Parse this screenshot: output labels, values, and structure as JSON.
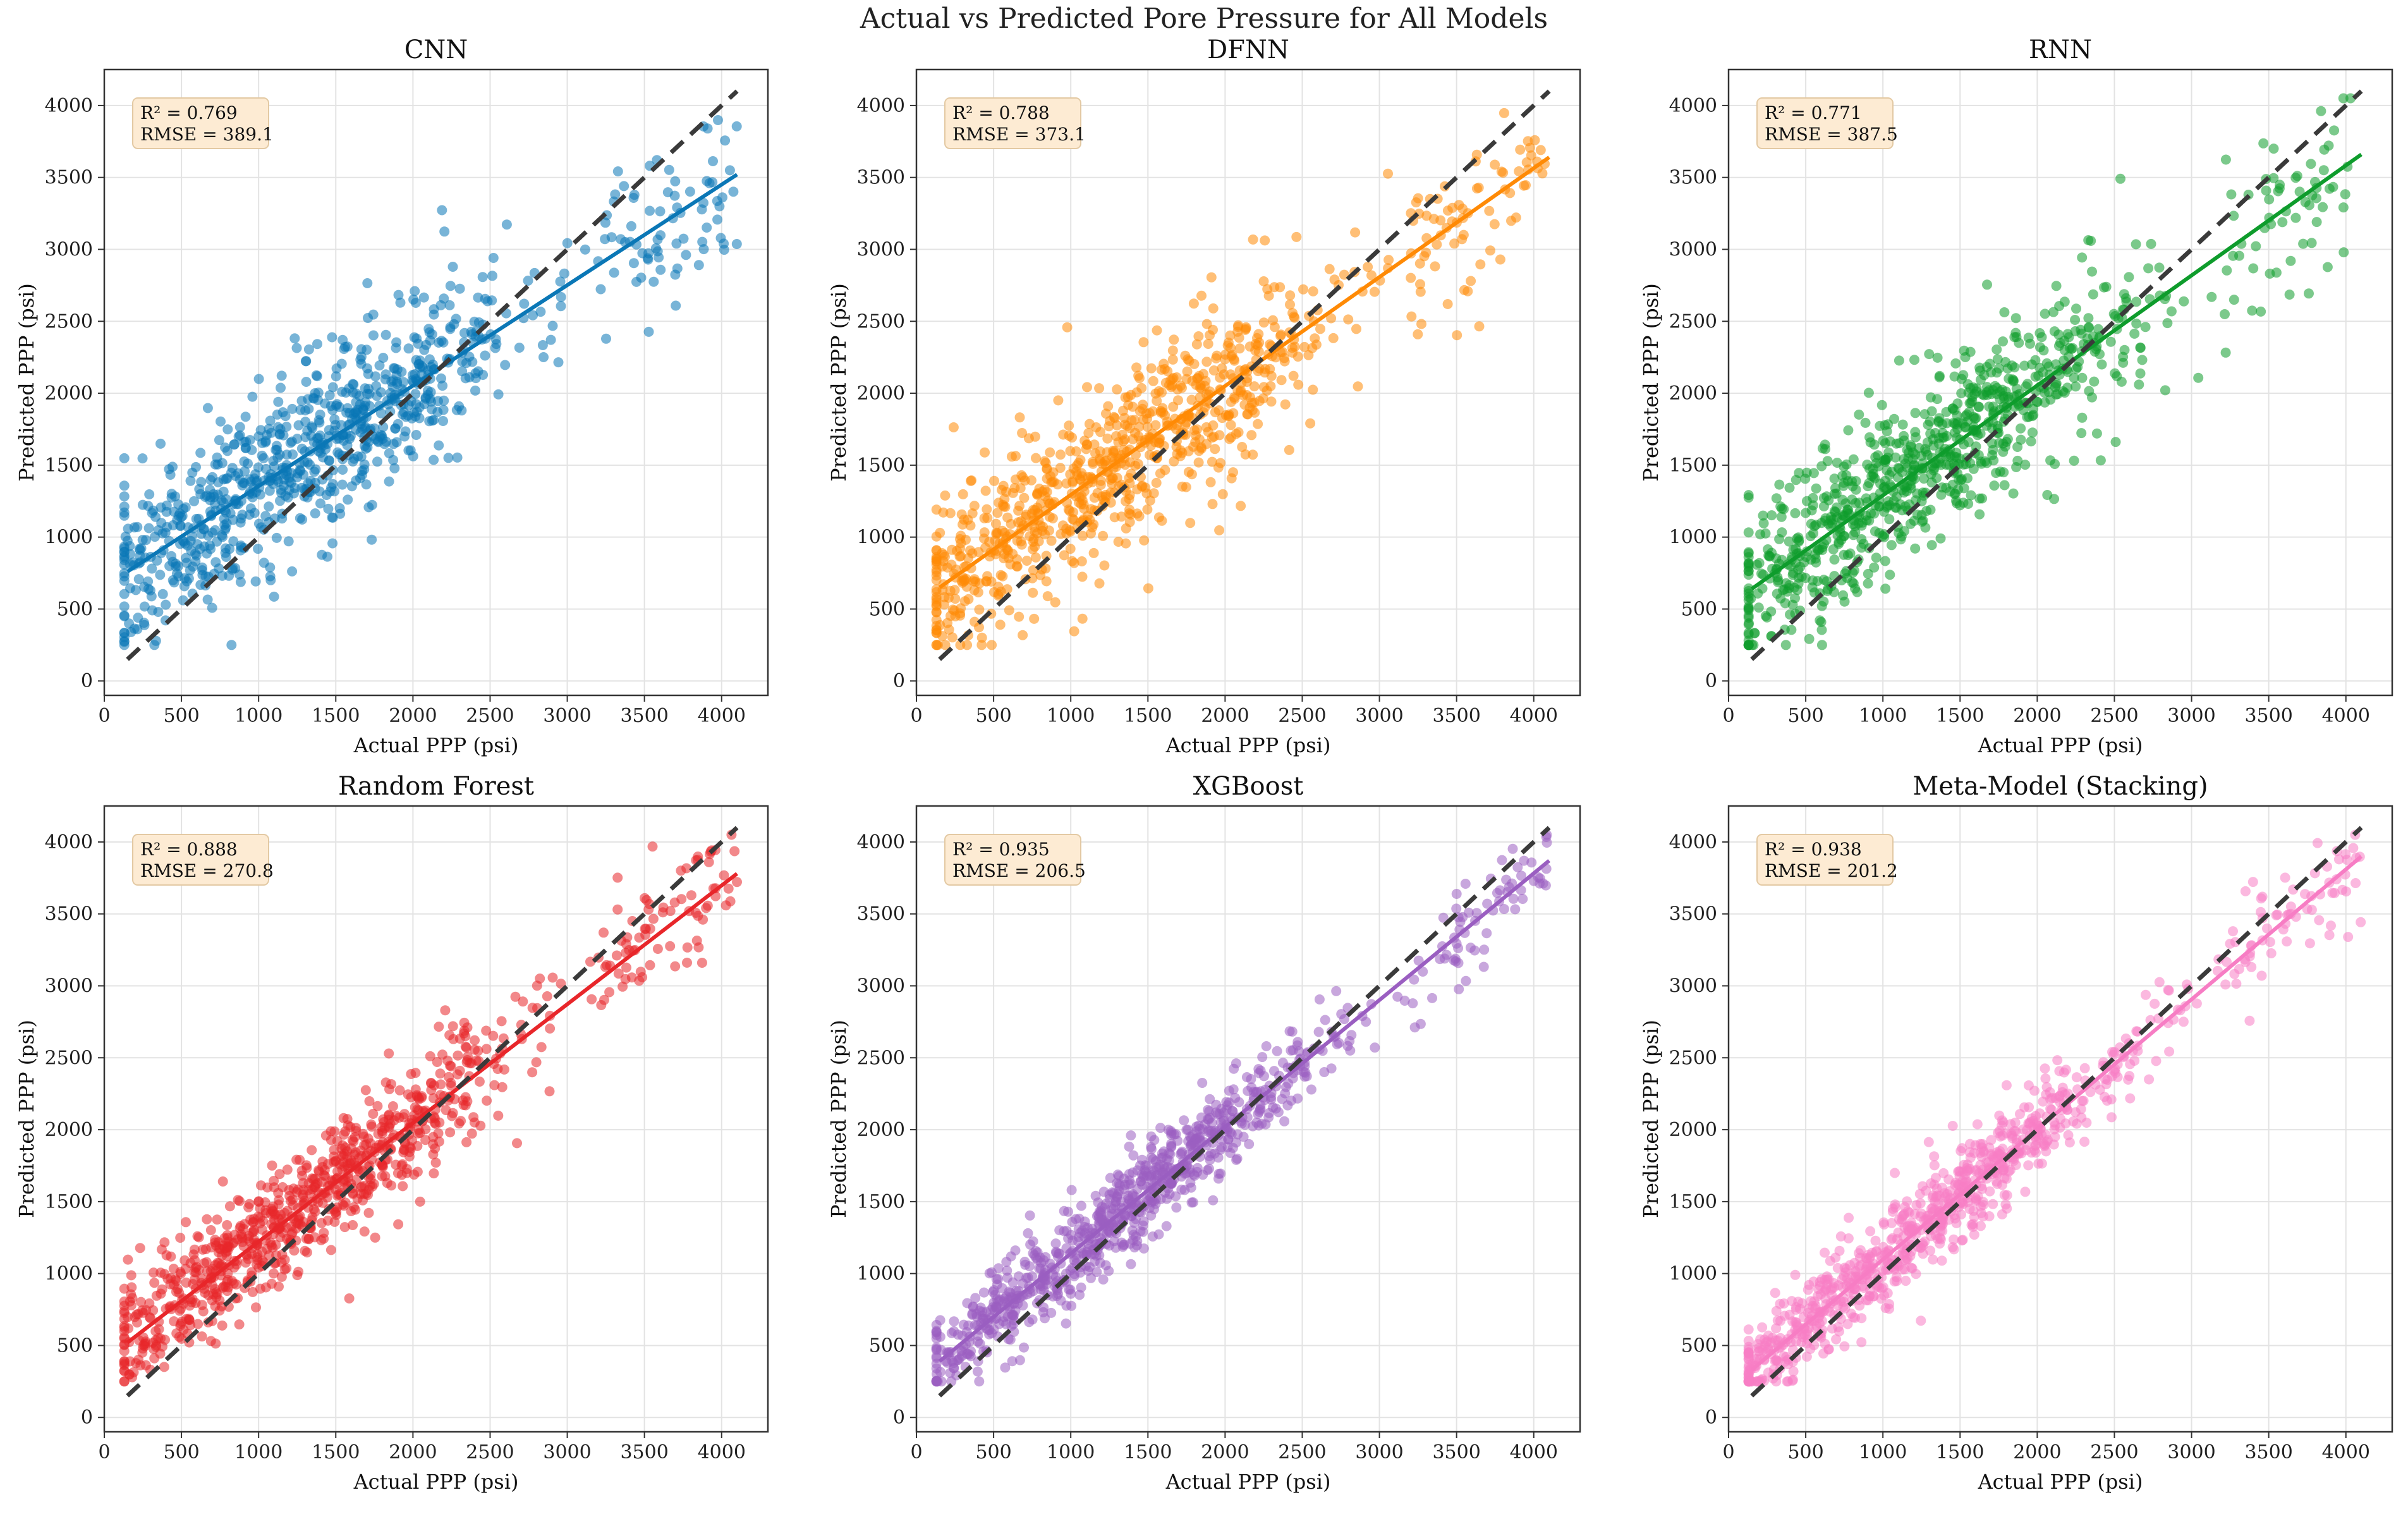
{
  "figure": {
    "title": "Actual vs Predicted Pore Pressure for All Models"
  },
  "chart_data": [
    {
      "type": "scatter",
      "title": "CNN",
      "xlabel": "Actual PPP (psi)",
      "ylabel": "Predicted PPP (psi)",
      "xlim": [
        0,
        4300
      ],
      "ylim": [
        -100,
        4250
      ],
      "xticks": [
        0,
        500,
        1000,
        1500,
        2000,
        2500,
        3000,
        3500,
        4000
      ],
      "yticks": [
        0,
        500,
        1000,
        1500,
        2000,
        2500,
        3000,
        3500,
        4000
      ],
      "color": "#0a77b6",
      "stats": {
        "r2": "R² = 0.769",
        "rmse": "RMSE = 389.1"
      },
      "fit_line": {
        "x": [
          150,
          4100
        ],
        "y": [
          760,
          3520
        ]
      },
      "identity_line": {
        "x": [
          150,
          4100
        ],
        "y": [
          150,
          4100
        ]
      },
      "spread": 390,
      "seed": 11
    },
    {
      "type": "scatter",
      "title": "DFNN",
      "xlabel": "Actual PPP (psi)",
      "ylabel": "Predicted PPP (psi)",
      "xlim": [
        0,
        4300
      ],
      "ylim": [
        -100,
        4250
      ],
      "xticks": [
        0,
        500,
        1000,
        1500,
        2000,
        2500,
        3000,
        3500,
        4000
      ],
      "yticks": [
        0,
        500,
        1000,
        1500,
        2000,
        2500,
        3000,
        3500,
        4000
      ],
      "color": "#ff8a05",
      "stats": {
        "r2": "R² = 0.788",
        "rmse": "RMSE = 373.1"
      },
      "fit_line": {
        "x": [
          150,
          4100
        ],
        "y": [
          650,
          3640
        ]
      },
      "identity_line": {
        "x": [
          150,
          4100
        ],
        "y": [
          150,
          4100
        ]
      },
      "spread": 370,
      "seed": 23
    },
    {
      "type": "scatter",
      "title": "RNN",
      "xlabel": "Actual PPP (psi)",
      "ylabel": "Predicted PPP (psi)",
      "xlim": [
        0,
        4300
      ],
      "ylim": [
        -100,
        4250
      ],
      "xticks": [
        0,
        500,
        1000,
        1500,
        2000,
        2500,
        3000,
        3500,
        4000
      ],
      "yticks": [
        0,
        500,
        1000,
        1500,
        2000,
        2500,
        3000,
        3500,
        4000
      ],
      "color": "#0e9c2c",
      "stats": {
        "r2": "R² = 0.771",
        "rmse": "RMSE = 387.5"
      },
      "fit_line": {
        "x": [
          150,
          4100
        ],
        "y": [
          640,
          3660
        ]
      },
      "identity_line": {
        "x": [
          150,
          4100
        ],
        "y": [
          150,
          4100
        ]
      },
      "spread": 385,
      "seed": 37
    },
    {
      "type": "scatter",
      "title": "Random Forest",
      "xlabel": "Actual PPP (psi)",
      "ylabel": "Predicted PPP (psi)",
      "xlim": [
        0,
        4300
      ],
      "ylim": [
        -100,
        4250
      ],
      "xticks": [
        0,
        500,
        1000,
        1500,
        2000,
        2500,
        3000,
        3500,
        4000
      ],
      "yticks": [
        0,
        500,
        1000,
        1500,
        2000,
        2500,
        3000,
        3500,
        4000
      ],
      "color": "#e8262a",
      "stats": {
        "r2": "R² = 0.888",
        "rmse": "RMSE = 270.8"
      },
      "fit_line": {
        "x": [
          150,
          4100
        ],
        "y": [
          520,
          3780
        ]
      },
      "identity_line": {
        "x": [
          150,
          4100
        ],
        "y": [
          150,
          4100
        ]
      },
      "spread": 270,
      "seed": 41
    },
    {
      "type": "scatter",
      "title": "XGBoost",
      "xlabel": "Actual PPP (psi)",
      "ylabel": "Predicted PPP (psi)",
      "xlim": [
        0,
        4300
      ],
      "ylim": [
        -100,
        4250
      ],
      "xticks": [
        0,
        500,
        1000,
        1500,
        2000,
        2500,
        3000,
        3500,
        4000
      ],
      "yticks": [
        0,
        500,
        1000,
        1500,
        2000,
        2500,
        3000,
        3500,
        4000
      ],
      "color": "#9a5ec1",
      "stats": {
        "r2": "R² = 0.935",
        "rmse": "RMSE = 206.5"
      },
      "fit_line": {
        "x": [
          150,
          4100
        ],
        "y": [
          390,
          3870
        ]
      },
      "identity_line": {
        "x": [
          150,
          4100
        ],
        "y": [
          150,
          4100
        ]
      },
      "spread": 205,
      "seed": 53
    },
    {
      "type": "scatter",
      "title": "Meta-Model (Stacking)",
      "xlabel": "Actual PPP (psi)",
      "ylabel": "Predicted PPP (psi)",
      "xlim": [
        0,
        4300
      ],
      "ylim": [
        -100,
        4250
      ],
      "xticks": [
        0,
        500,
        1000,
        1500,
        2000,
        2500,
        3000,
        3500,
        4000
      ],
      "yticks": [
        0,
        500,
        1000,
        1500,
        2000,
        2500,
        3000,
        3500,
        4000
      ],
      "color": "#f77dc4",
      "stats": {
        "r2": "R² = 0.938",
        "rmse": "RMSE = 201.2"
      },
      "fit_line": {
        "x": [
          150,
          4100
        ],
        "y": [
          330,
          3900
        ]
      },
      "identity_line": {
        "x": [
          150,
          4100
        ],
        "y": [
          150,
          4100
        ]
      },
      "spread": 200,
      "seed": 67
    }
  ]
}
